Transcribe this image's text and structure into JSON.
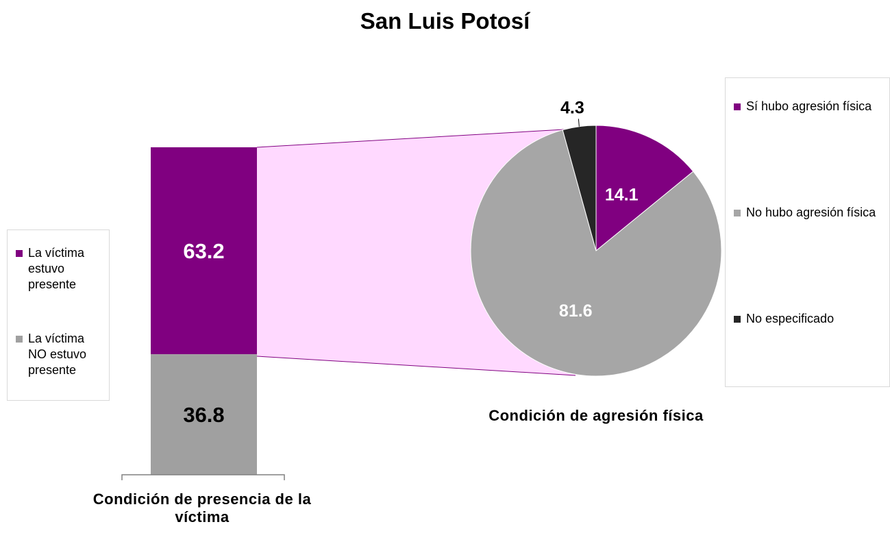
{
  "chart_data": [
    {
      "type": "bar",
      "stacked": true,
      "title": "San Luis Potosí",
      "xlabel": "Condición de presencia de la víctima",
      "categories": [
        null
      ],
      "series": [
        {
          "name": "La víctima estuvo presente",
          "color": "#800080",
          "values": [
            63.2
          ]
        },
        {
          "name": "La víctima NO estuvo presente",
          "color": "#a0a0a0",
          "values": [
            36.8
          ]
        }
      ]
    },
    {
      "type": "pie",
      "xlabel": "Condición de agresión física",
      "categories": [
        "Sí hubo agresión física",
        "No hubo agresión física",
        "No especificado"
      ],
      "values": [
        14.1,
        81.6,
        4.3
      ],
      "colors": [
        "#800080",
        "#a6a6a6",
        "#262626"
      ]
    }
  ]
}
